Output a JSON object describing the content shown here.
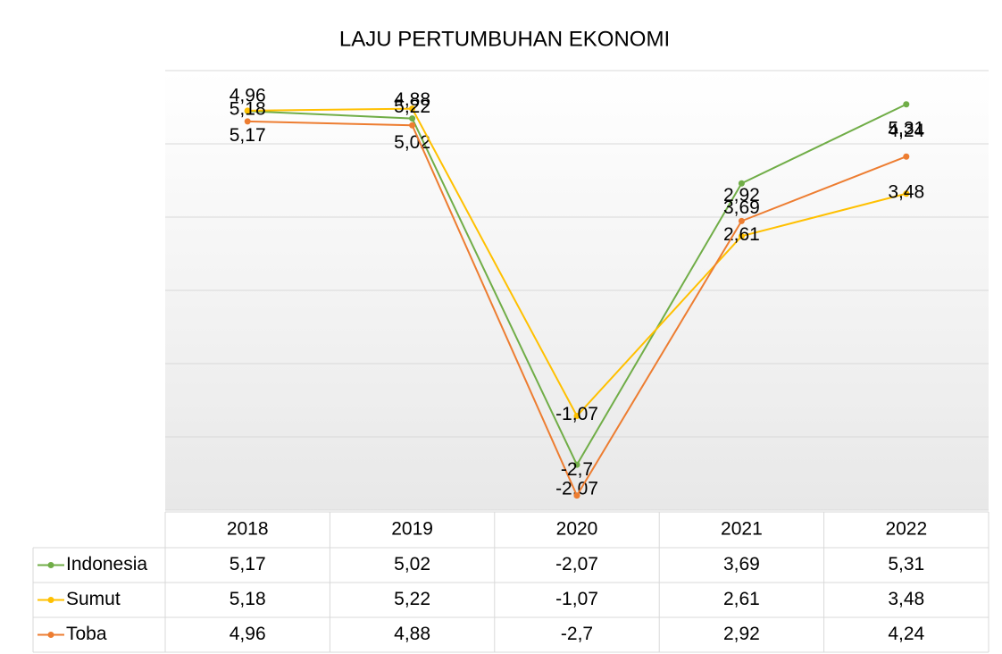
{
  "chart_data": {
    "type": "line",
    "title": "LAJU PERTUMBUHAN EKONOMI",
    "categories": [
      "2018",
      "2019",
      "2020",
      "2021",
      "2022"
    ],
    "series": [
      {
        "name": "Indonesia",
        "color": "#70ad47",
        "values": [
          5.17,
          5.02,
          -2.07,
          3.69,
          5.31
        ],
        "value_labels": [
          "5,17",
          "5,02",
          "-2,07",
          "3,69",
          "5,31"
        ]
      },
      {
        "name": "Sumut",
        "color": "#ffc000",
        "values": [
          5.18,
          5.22,
          -1.07,
          2.61,
          3.48
        ],
        "value_labels": [
          "5,18",
          "5,22",
          "-1,07",
          "2,61",
          "3,48"
        ]
      },
      {
        "name": "Toba",
        "color": "#ed7d31",
        "values": [
          4.96,
          4.88,
          -2.7,
          2.92,
          4.24
        ],
        "value_labels": [
          "4,96",
          "4,88",
          "-2,7",
          "2,92",
          "4,24"
        ]
      }
    ],
    "ylim": [
      -3,
      6
    ],
    "yticks": [
      -3,
      -1.5,
      0,
      1.5,
      3,
      4.5,
      6
    ],
    "grid": true
  }
}
